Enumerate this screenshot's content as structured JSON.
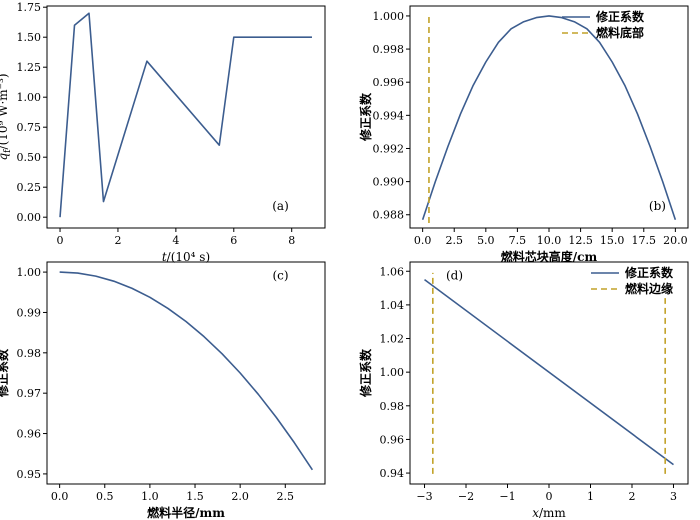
{
  "chart_data": [
    {
      "id": "a",
      "type": "line",
      "panel_label": "(a)",
      "xlabel": "t/(10⁴ s)",
      "ylabel": "q_f/(10⁹ W·m⁻³)",
      "xlim": [
        -0.45,
        9.15
      ],
      "ylim": [
        -0.09,
        1.76
      ],
      "xticks": [
        0,
        2,
        4,
        6,
        8
      ],
      "xtick_labels": [
        "0",
        "2",
        "4",
        "6",
        "8"
      ],
      "yticks": [
        0.0,
        0.25,
        0.5,
        0.75,
        1.0,
        1.25,
        1.5,
        1.75
      ],
      "ytick_labels": [
        "0.00",
        "0.25",
        "0.50",
        "0.75",
        "1.00",
        "1.25",
        "1.50",
        "1.75"
      ],
      "series": [
        {
          "color": "#3c5d8f",
          "style": "solid",
          "x": [
            0,
            0.5,
            1.0,
            1.5,
            3.0,
            5.5,
            6.0,
            8.7
          ],
          "y": [
            0.0,
            1.6,
            1.7,
            0.13,
            1.3,
            0.6,
            1.5,
            1.5
          ]
        }
      ],
      "legend": []
    },
    {
      "id": "b",
      "type": "line",
      "panel_label": "(b)",
      "xlabel": "燃料芯块高度/cm",
      "ylabel": "修正系数",
      "xlim": [
        -1.0,
        21.0
      ],
      "ylim": [
        0.9872,
        1.0006
      ],
      "xticks": [
        0,
        2.5,
        5,
        7.5,
        10,
        12.5,
        15,
        17.5,
        20
      ],
      "xtick_labels": [
        "0.0",
        "2.5",
        "5.0",
        "7.5",
        "10.0",
        "12.5",
        "15.0",
        "17.5",
        "20.0"
      ],
      "yticks": [
        0.988,
        0.99,
        0.992,
        0.994,
        0.996,
        0.998,
        1.0
      ],
      "ytick_labels": [
        "0.988",
        "0.990",
        "0.992",
        "0.994",
        "0.996",
        "0.998",
        "1.000"
      ],
      "series": [
        {
          "name": "修正系数",
          "color": "#3c5d8f",
          "style": "solid",
          "x": [
            0,
            1,
            2,
            3,
            4,
            5,
            6,
            7,
            8,
            9,
            10,
            11,
            12,
            13,
            14,
            15,
            16,
            17,
            18,
            19,
            20
          ],
          "y": [
            0.9877,
            0.98999,
            0.99212,
            0.99409,
            0.99581,
            0.99722,
            0.99841,
            0.99922,
            0.99965,
            0.9999,
            1.0,
            0.9999,
            0.99965,
            0.99922,
            0.99841,
            0.99722,
            0.99581,
            0.99409,
            0.99212,
            0.98999,
            0.9877
          ]
        },
        {
          "name": "燃料底部",
          "color": "#c2a229",
          "style": "dashed",
          "x": [
            0.5,
            0.5
          ],
          "y": [
            0.9875,
            1.0
          ]
        }
      ],
      "legend": [
        "修正系数",
        "燃料底部"
      ],
      "legend_position": "top-right"
    },
    {
      "id": "c",
      "type": "line",
      "panel_label": "(c)",
      "xlabel": "燃料半径/mm",
      "ylabel": "修正系数",
      "xlim": [
        -0.14,
        2.94
      ],
      "ylim": [
        0.9475,
        1.0025
      ],
      "xticks": [
        0,
        0.5,
        1.0,
        1.5,
        2.0,
        2.5
      ],
      "xtick_labels": [
        "0.0",
        "0.5",
        "1.0",
        "1.5",
        "2.0",
        "2.5"
      ],
      "yticks": [
        0.95,
        0.96,
        0.97,
        0.98,
        0.99,
        1.0
      ],
      "ytick_labels": [
        "0.95",
        "0.96",
        "0.97",
        "0.98",
        "0.99",
        "1.00"
      ],
      "series": [
        {
          "color": "#3c5d8f",
          "style": "solid",
          "x": [
            0,
            0.2,
            0.4,
            0.6,
            0.8,
            1.0,
            1.2,
            1.4,
            1.6,
            1.8,
            2.0,
            2.2,
            2.4,
            2.6,
            2.8
          ],
          "y": [
            1.0,
            0.99975,
            0.999,
            0.99775,
            0.996,
            0.99375,
            0.991,
            0.98775,
            0.984,
            0.97975,
            0.975,
            0.96975,
            0.964,
            0.95775,
            0.951
          ]
        }
      ],
      "legend": []
    },
    {
      "id": "d",
      "type": "line",
      "panel_label": "(d)",
      "xlabel": "x/mm",
      "ylabel": "修正系数",
      "xlim": [
        -3.35,
        3.35
      ],
      "ylim": [
        0.9335,
        1.0655
      ],
      "xticks": [
        -3,
        -2,
        -1,
        0,
        1,
        2,
        3
      ],
      "xtick_labels": [
        "−3",
        "−2",
        "−1",
        "0",
        "1",
        "2",
        "3"
      ],
      "yticks": [
        0.94,
        0.96,
        0.98,
        1.0,
        1.02,
        1.04,
        1.06
      ],
      "ytick_labels": [
        "0.94",
        "0.96",
        "0.98",
        "1.00",
        "1.02",
        "1.04",
        "1.06"
      ],
      "series": [
        {
          "name": "修正系数",
          "color": "#3c5d8f",
          "style": "solid",
          "x": [
            -3.0,
            3.0
          ],
          "y": [
            1.055,
            0.945
          ]
        },
        {
          "name": "燃料边缘",
          "color": "#c2a229",
          "style": "dashed",
          "x": [
            -2.8,
            -2.8
          ],
          "y": [
            0.9395,
            1.059
          ]
        },
        {
          "name": "燃料边缘",
          "color": "#c2a229",
          "style": "dashed",
          "x": [
            2.8,
            2.8
          ],
          "y": [
            0.9395,
            1.044
          ]
        }
      ],
      "legend": [
        "修正系数",
        "燃料边缘"
      ],
      "legend_position": "top-right"
    }
  ]
}
